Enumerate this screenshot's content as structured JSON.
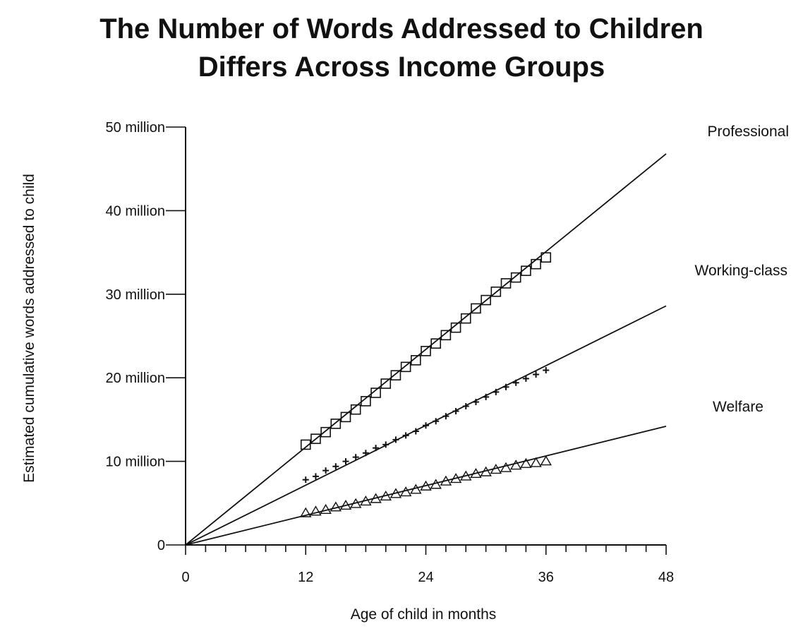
{
  "title_lines": [
    "The Number of Words Addressed to Children",
    "Differs Across Income Groups"
  ],
  "chart_data": {
    "type": "scatter",
    "title": "The Number of Words Addressed to Children Differs Across Income Groups",
    "xlabel": "Age of child in months",
    "ylabel": "Estimated cumulative words addressed to child",
    "xlim": [
      0,
      48
    ],
    "ylim": [
      0,
      50000000
    ],
    "x_ticks": [
      0,
      12,
      24,
      36,
      48
    ],
    "x_minor_step": 2,
    "y_ticks": [
      {
        "value": 0,
        "label": "0"
      },
      {
        "value": 10000000,
        "label": "10 million"
      },
      {
        "value": 20000000,
        "label": "20 million"
      },
      {
        "value": 30000000,
        "label": "30 million"
      },
      {
        "value": 40000000,
        "label": "40 million"
      },
      {
        "value": 50000000,
        "label": "50 million"
      }
    ],
    "grid": false,
    "legend": "right, labels beside each line",
    "series": [
      {
        "name": "Professional",
        "marker": "square",
        "line": {
          "x": [
            0,
            48
          ],
          "y": [
            0,
            46800000
          ]
        },
        "x": [
          12,
          13,
          14,
          15,
          16,
          17,
          18,
          19,
          20,
          21,
          22,
          23,
          24,
          25,
          26,
          27,
          28,
          29,
          30,
          31,
          32,
          33,
          34,
          35,
          36
        ],
        "y": [
          12000000,
          12700000,
          13500000,
          14500000,
          15300000,
          16200000,
          17200000,
          18200000,
          19300000,
          20300000,
          21300000,
          22100000,
          23200000,
          24100000,
          25100000,
          26000000,
          27100000,
          28300000,
          29300000,
          30300000,
          31300000,
          32000000,
          32800000,
          33600000,
          34400000
        ]
      },
      {
        "name": "Working-class",
        "marker": "plus",
        "line": {
          "x": [
            0,
            48
          ],
          "y": [
            0,
            28600000
          ]
        },
        "x": [
          12,
          13,
          14,
          15,
          16,
          17,
          18,
          19,
          20,
          21,
          22,
          23,
          24,
          25,
          26,
          27,
          28,
          29,
          30,
          31,
          32,
          33,
          34,
          35,
          36
        ],
        "y": [
          7800000,
          8200000,
          8900000,
          9400000,
          10000000,
          10500000,
          11000000,
          11600000,
          12000000,
          12600000,
          13100000,
          13600000,
          14300000,
          14800000,
          15400000,
          16000000,
          16600000,
          17100000,
          17700000,
          18300000,
          18900000,
          19400000,
          19900000,
          20400000,
          20900000
        ]
      },
      {
        "name": "Welfare",
        "marker": "triangle",
        "line": {
          "x": [
            0,
            48
          ],
          "y": [
            0,
            14200000
          ]
        },
        "x": [
          12,
          13,
          14,
          15,
          16,
          17,
          18,
          19,
          20,
          21,
          22,
          23,
          24,
          25,
          26,
          27,
          28,
          29,
          30,
          31,
          32,
          33,
          34,
          35,
          36
        ],
        "y": [
          3800000,
          4000000,
          4200000,
          4500000,
          4700000,
          4900000,
          5200000,
          5500000,
          5800000,
          6100000,
          6300000,
          6600000,
          7000000,
          7200000,
          7600000,
          7900000,
          8200000,
          8500000,
          8700000,
          9000000,
          9200000,
          9500000,
          9700000,
          9800000,
          10000000
        ]
      }
    ]
  }
}
